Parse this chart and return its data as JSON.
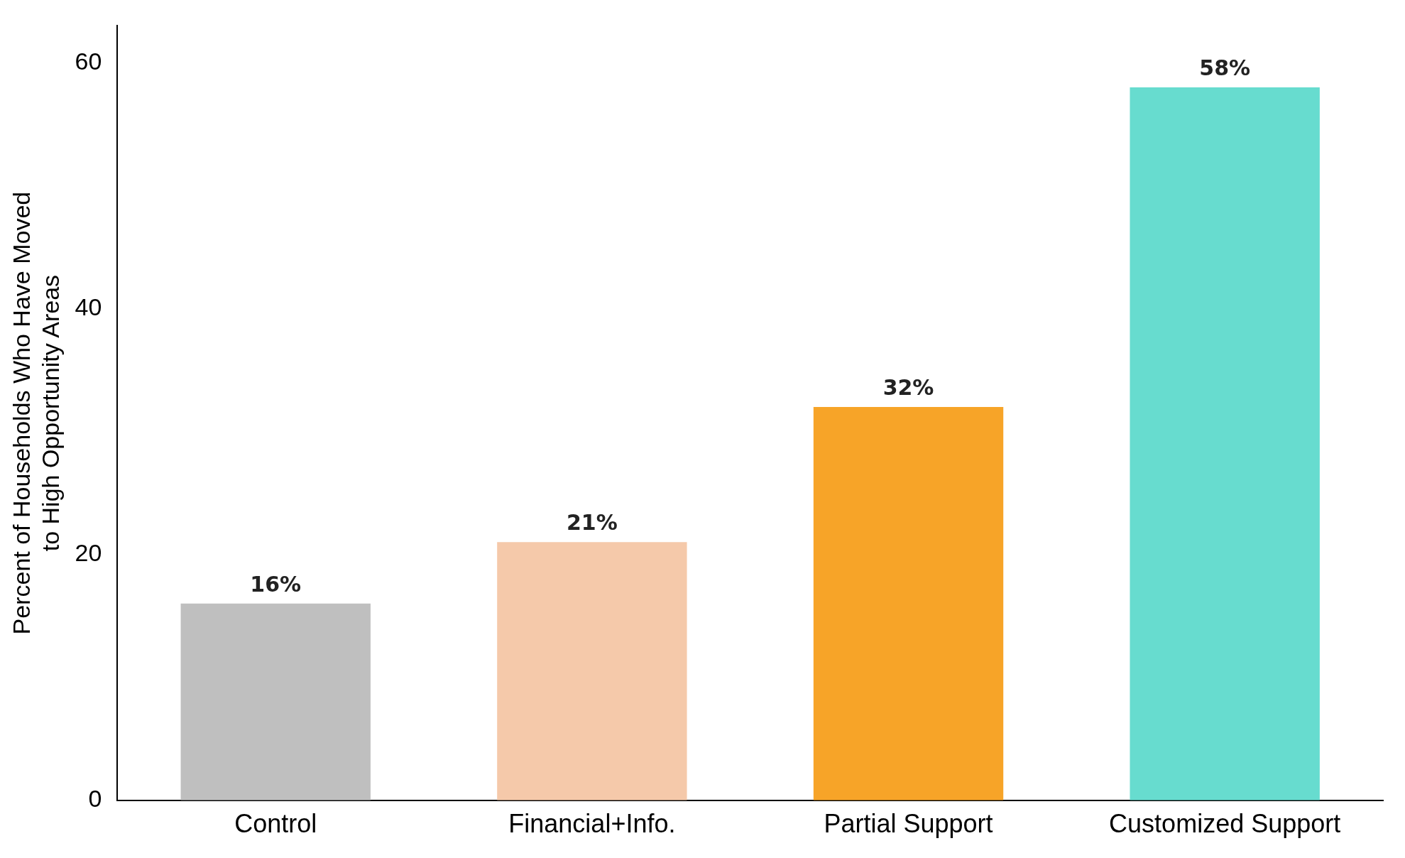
{
  "chart_data": {
    "type": "bar",
    "ylabel": "Percent of Households Who Have Moved\nto High Opportunity Areas",
    "categories": [
      "Control",
      "Financial+Info.",
      "Partial Support",
      "Customized Support"
    ],
    "values": [
      16,
      21,
      32,
      58
    ],
    "colors": [
      "#bfbfbf",
      "#f5c9aa",
      "#f7a428",
      "#67dccf"
    ],
    "value_labels": [
      "16%",
      "21%",
      "32%",
      "58%"
    ],
    "ylim": [
      0,
      63
    ],
    "yticks": [
      0,
      20,
      40,
      60
    ],
    "grid": false,
    "legend": false
  }
}
